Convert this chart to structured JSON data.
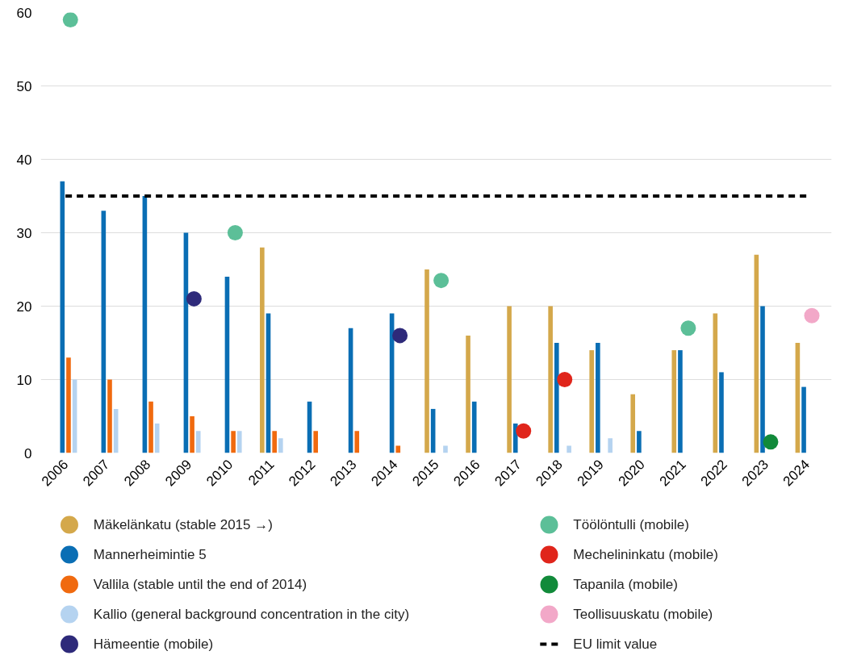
{
  "chart_data": {
    "type": "bar",
    "categories": [
      "2006",
      "2007",
      "2008",
      "2009",
      "2010",
      "2011",
      "2012",
      "2013",
      "2014",
      "2015",
      "2016",
      "2017",
      "2018",
      "2019",
      "2020",
      "2021",
      "2022",
      "2023",
      "2024"
    ],
    "series": [
      {
        "name": "Mäkelänkatu (stable 2015 →)",
        "color": "#d4a84b",
        "values": [
          null,
          null,
          null,
          null,
          null,
          28,
          null,
          null,
          null,
          25,
          16,
          20,
          20,
          14,
          8,
          14,
          19,
          27,
          15
        ]
      },
      {
        "name": "Mannerheimintie 5",
        "color": "#0a6eb4",
        "values": [
          37,
          33,
          35,
          30,
          24,
          19,
          7,
          17,
          19,
          6,
          7,
          4,
          15,
          15,
          3,
          14,
          11,
          20,
          9
        ]
      },
      {
        "name": "Vallila (stable until the end of 2014)",
        "color": "#f06a0f",
        "values": [
          13,
          10,
          7,
          5,
          3,
          3,
          3,
          3,
          1,
          null,
          null,
          null,
          null,
          null,
          null,
          null,
          null,
          null,
          null
        ]
      },
      {
        "name": "Kallio (general background concentration in the city)",
        "color": "#b5d3f0",
        "values": [
          10,
          6,
          4,
          3,
          3,
          2,
          null,
          null,
          null,
          1,
          null,
          null,
          1,
          2,
          null,
          null,
          null,
          null,
          null
        ]
      },
      {
        "name": "Hämeentie (mobile)",
        "type": "scatter",
        "color": "#2e2a7a",
        "values": [
          null,
          null,
          null,
          21,
          null,
          null,
          null,
          null,
          16,
          null,
          null,
          null,
          null,
          null,
          null,
          null,
          null,
          null,
          null
        ]
      },
      {
        "name": "Töölöntulli (mobile)",
        "type": "scatter",
        "color": "#5cbf98",
        "values": [
          59,
          null,
          null,
          null,
          30,
          null,
          null,
          null,
          null,
          23.5,
          null,
          null,
          null,
          null,
          null,
          17,
          null,
          null,
          null
        ]
      },
      {
        "name": "Mechelininkatu (mobile)",
        "type": "scatter",
        "color": "#e0251b",
        "values": [
          null,
          null,
          null,
          null,
          null,
          null,
          null,
          null,
          null,
          null,
          null,
          3,
          10,
          null,
          null,
          null,
          null,
          null,
          null
        ]
      },
      {
        "name": "Tapanila (mobile)",
        "type": "scatter",
        "color": "#118a3a",
        "values": [
          null,
          null,
          null,
          null,
          null,
          null,
          null,
          null,
          null,
          null,
          null,
          null,
          null,
          null,
          null,
          null,
          null,
          1.5,
          null
        ]
      },
      {
        "name": "Teollisuuskatu (mobile)",
        "type": "scatter",
        "color": "#f2a8c8",
        "values": [
          null,
          null,
          null,
          null,
          null,
          null,
          null,
          null,
          null,
          null,
          null,
          null,
          null,
          null,
          null,
          null,
          null,
          null,
          18.7
        ]
      }
    ],
    "ref_lines": [
      {
        "axis": "y",
        "value": 35,
        "label": "EU limit value",
        "color": "#000000",
        "line_style": "dashed"
      }
    ],
    "ylim": [
      0,
      60
    ],
    "yticks": [
      0,
      10,
      20,
      30,
      40,
      50,
      60
    ],
    "grid": "y",
    "legend": "bottom",
    "marker": "circle"
  }
}
